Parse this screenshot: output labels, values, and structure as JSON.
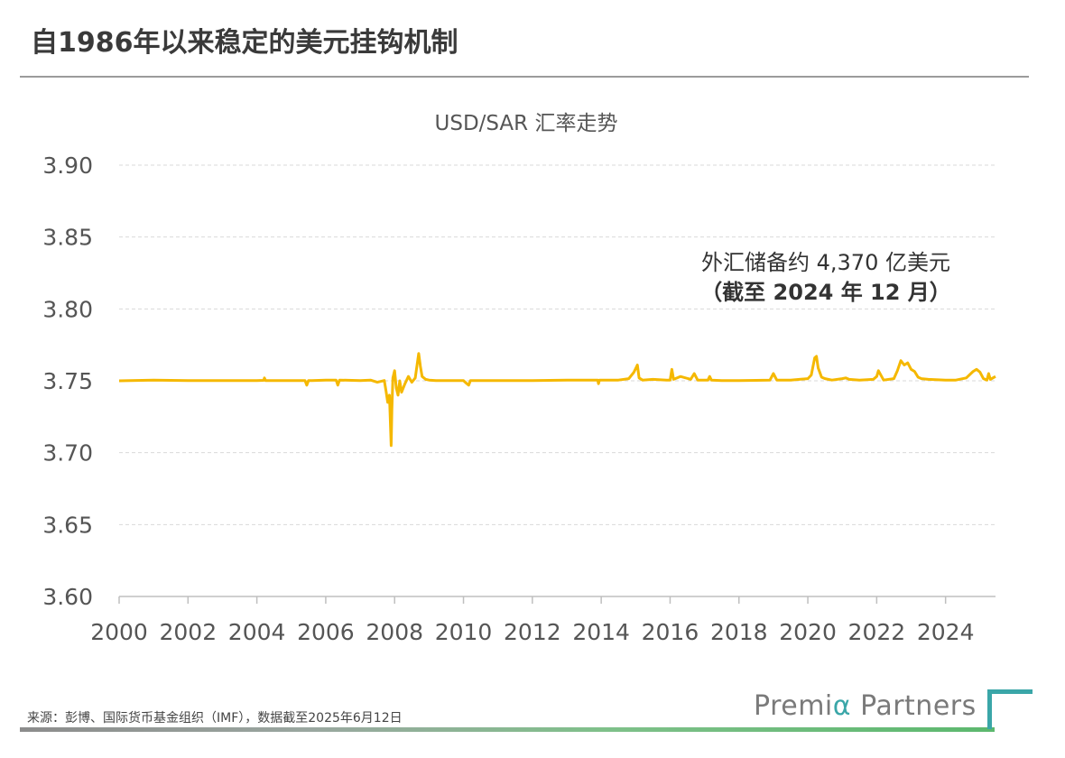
{
  "page": {
    "title": "自1986年以来稳定的美元挂钩机制",
    "source_note": "来源：彭博、国际货币基金组织（IMF），数据截至2025年6月12日",
    "brand": {
      "prefix": "Premi",
      "alpha": "α",
      "suffix": " Partners"
    }
  },
  "colors": {
    "line": "#f5b800",
    "grid": "#d9d9d9",
    "axis": "#bfbfbf",
    "accent": "#3aa6a8"
  },
  "chart_data": {
    "type": "line",
    "title": "USD/SAR 汇率走势",
    "xlabel": "",
    "ylabel": "",
    "xlim": [
      2000,
      2025.45
    ],
    "ylim": [
      3.6,
      3.9
    ],
    "yticks": [
      3.6,
      3.65,
      3.7,
      3.75,
      3.8,
      3.85,
      3.9
    ],
    "ytick_labels": [
      "3.60",
      "3.65",
      "3.70",
      "3.75",
      "3.80",
      "3.85",
      "3.90"
    ],
    "xticks": [
      2000,
      2002,
      2004,
      2006,
      2008,
      2010,
      2012,
      2014,
      2016,
      2018,
      2020,
      2022,
      2024
    ],
    "xtick_labels": [
      "2000",
      "2002",
      "2004",
      "2006",
      "2008",
      "2010",
      "2012",
      "2014",
      "2016",
      "2018",
      "2020",
      "2022",
      "2024"
    ],
    "grid": true,
    "annotation": [
      "外汇储备约 4,370 亿美元",
      "（截至 2024 年 12 月）"
    ],
    "series": [
      {
        "name": "USD/SAR",
        "x": [
          2000.0,
          2001.0,
          2002.0,
          2003.0,
          2004.0,
          2004.2,
          2004.22,
          2004.25,
          2005.0,
          2005.4,
          2005.45,
          2005.5,
          2005.6,
          2006.0,
          2006.3,
          2006.35,
          2006.4,
          2007.0,
          2007.3,
          2007.5,
          2007.7,
          2007.75,
          2007.8,
          2007.85,
          2007.9,
          2007.92,
          2007.95,
          2008.0,
          2008.05,
          2008.1,
          2008.15,
          2008.2,
          2008.3,
          2008.4,
          2008.5,
          2008.6,
          2008.7,
          2008.75,
          2008.8,
          2008.9,
          2009.0,
          2009.2,
          2009.5,
          2010.0,
          2010.1,
          2010.15,
          2010.2,
          2011.0,
          2012.0,
          2013.0,
          2013.9,
          2013.92,
          2013.95,
          2014.5,
          2014.8,
          2014.95,
          2015.05,
          2015.1,
          2015.2,
          2015.5,
          2015.9,
          2016.0,
          2016.05,
          2016.1,
          2016.3,
          2016.6,
          2016.7,
          2016.8,
          2017.1,
          2017.15,
          2017.2,
          2017.5,
          2018.0,
          2018.5,
          2018.9,
          2019.0,
          2019.1,
          2019.5,
          2020.0,
          2020.1,
          2020.2,
          2020.25,
          2020.3,
          2020.4,
          2020.5,
          2020.7,
          2021.0,
          2021.1,
          2021.2,
          2021.5,
          2021.9,
          2022.0,
          2022.05,
          2022.2,
          2022.5,
          2022.6,
          2022.7,
          2022.8,
          2022.9,
          2023.0,
          2023.1,
          2023.2,
          2023.3,
          2023.5,
          2024.0,
          2024.3,
          2024.6,
          2024.8,
          2024.9,
          2025.0,
          2025.1,
          2025.2,
          2025.25,
          2025.3,
          2025.45
        ],
        "values": [
          3.75,
          3.7505,
          3.7502,
          3.7501,
          3.7502,
          3.7503,
          3.752,
          3.7502,
          3.7501,
          3.7501,
          3.747,
          3.7502,
          3.7502,
          3.7505,
          3.7505,
          3.747,
          3.7505,
          3.7502,
          3.7505,
          3.749,
          3.7502,
          3.743,
          3.735,
          3.74,
          3.705,
          3.73,
          3.752,
          3.757,
          3.745,
          3.74,
          3.75,
          3.742,
          3.748,
          3.753,
          3.749,
          3.752,
          3.769,
          3.76,
          3.753,
          3.751,
          3.7505,
          3.7502,
          3.7502,
          3.7501,
          3.748,
          3.747,
          3.7502,
          3.7502,
          3.7502,
          3.7505,
          3.7505,
          3.748,
          3.7505,
          3.7505,
          3.7515,
          3.756,
          3.761,
          3.752,
          3.7505,
          3.751,
          3.7505,
          3.7505,
          3.758,
          3.751,
          3.753,
          3.751,
          3.755,
          3.7505,
          3.7505,
          3.753,
          3.7505,
          3.7502,
          3.7502,
          3.7503,
          3.7505,
          3.755,
          3.7505,
          3.7505,
          3.7515,
          3.754,
          3.766,
          3.767,
          3.759,
          3.7525,
          3.7515,
          3.7505,
          3.7515,
          3.752,
          3.751,
          3.7505,
          3.751,
          3.753,
          3.757,
          3.7505,
          3.7515,
          3.757,
          3.764,
          3.761,
          3.7625,
          3.758,
          3.7565,
          3.7525,
          3.7515,
          3.751,
          3.7505,
          3.7505,
          3.752,
          3.7565,
          3.758,
          3.756,
          3.7515,
          3.7505,
          3.755,
          3.751,
          3.753
        ]
      }
    ]
  }
}
